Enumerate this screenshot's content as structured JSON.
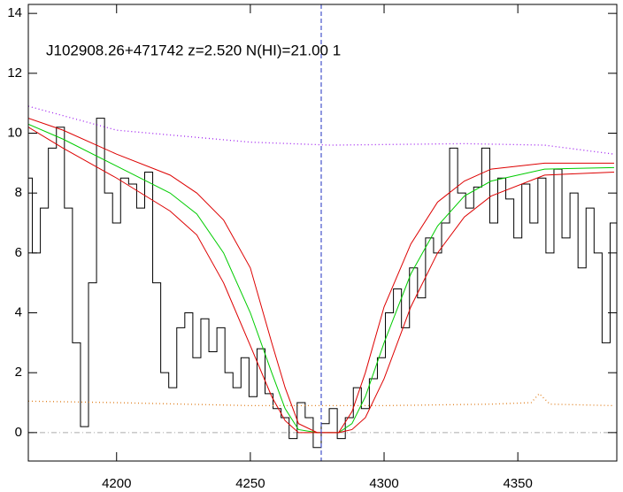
{
  "chart_data": {
    "type": "line",
    "title": "J102908.26+471742 z=2.520 N(HI)=21.00 1",
    "xlim": [
      4167,
      4387
    ],
    "ylim": [
      -0.95,
      14.3
    ],
    "xticks": [
      4200,
      4250,
      4300,
      4350
    ],
    "yticks": [
      0,
      2,
      4,
      6,
      8,
      10,
      12,
      14
    ],
    "grid": false,
    "vline": 4276.5,
    "hline": 0,
    "series": [
      {
        "color": "#000000",
        "style": "step",
        "x": [
          4167,
          4170,
          4173,
          4176,
          4179,
          4182,
          4185,
          4188,
          4191,
          4194,
          4197,
          4200,
          4203,
          4206,
          4209,
          4212,
          4215,
          4218,
          4221,
          4224,
          4227,
          4230,
          4233,
          4236,
          4239,
          4242,
          4245,
          4248,
          4251,
          4254,
          4257,
          4260,
          4263,
          4266,
          4269,
          4272,
          4275,
          4278,
          4281,
          4284,
          4287,
          4290,
          4293,
          4296,
          4299,
          4302,
          4305,
          4308,
          4311,
          4314,
          4317,
          4320,
          4323,
          4326,
          4329,
          4332,
          4335,
          4338,
          4341,
          4344,
          4347,
          4350,
          4353,
          4356,
          4359,
          4362,
          4365,
          4368,
          4371,
          4374,
          4377,
          4380,
          4383,
          4386
        ],
        "values": [
          8.5,
          6,
          7.5,
          9.5,
          10.2,
          7.5,
          3,
          0.2,
          5,
          10.5,
          8,
          7,
          8.5,
          8.3,
          7.5,
          8.7,
          5,
          2,
          1.5,
          3.5,
          4,
          2.5,
          3.8,
          2.7,
          3.5,
          2,
          1.5,
          2.5,
          1.2,
          2.8,
          1.3,
          0.8,
          0.5,
          -0.2,
          1,
          0.5,
          -0.5,
          0.3,
          0.8,
          -0.2,
          0.5,
          1.5,
          0.8,
          1.8,
          2.5,
          4,
          4.8,
          3.5,
          5.5,
          4.5,
          6.5,
          6,
          7,
          9.5,
          8,
          7.5,
          8.2,
          9.5,
          7,
          8.5,
          7.8,
          6.5,
          8.3,
          7,
          8.5,
          6,
          8.8,
          6.5,
          8,
          5.5,
          7.5,
          6,
          3,
          7
        ]
      },
      {
        "color": "#a020f0",
        "style": "dotted",
        "x": [
          4167,
          4200,
          4250,
          4280,
          4330,
          4360,
          4386
        ],
        "values": [
          10.9,
          10.1,
          9.7,
          9.6,
          9.65,
          9.6,
          9.3
        ]
      },
      {
        "color": "#e08020",
        "style": "dotted",
        "x": [
          4167,
          4200,
          4250,
          4300,
          4340,
          4355,
          4358,
          4362,
          4386
        ],
        "values": [
          1.05,
          1.0,
          0.9,
          0.9,
          0.95,
          1.0,
          1.3,
          0.95,
          0.9
        ]
      },
      {
        "color": "#00cc00",
        "style": "solid",
        "x": [
          4167,
          4180,
          4200,
          4220,
          4230,
          4240,
          4250,
          4258,
          4263,
          4268,
          4275,
          4283,
          4288,
          4293,
          4300,
          4310,
          4320,
          4330,
          4340,
          4360,
          4386
        ],
        "values": [
          10.3,
          9.8,
          8.9,
          8.0,
          7.3,
          6.0,
          4.0,
          2.0,
          0.8,
          0.1,
          0,
          0,
          0.3,
          1.2,
          3.0,
          5.3,
          6.9,
          7.9,
          8.4,
          8.8,
          8.85
        ]
      },
      {
        "color": "#dd0000",
        "style": "solid",
        "x": [
          4167,
          4180,
          4200,
          4220,
          4230,
          4240,
          4250,
          4258,
          4263,
          4268,
          4275,
          4283,
          4288,
          4293,
          4300,
          4310,
          4320,
          4330,
          4340,
          4360,
          4386
        ],
        "values": [
          10.5,
          10.1,
          9.3,
          8.6,
          8.0,
          7.1,
          5.5,
          3.0,
          1.5,
          0.3,
          0,
          0,
          0.7,
          2.0,
          4.2,
          6.3,
          7.7,
          8.4,
          8.8,
          9.0,
          9.0
        ]
      },
      {
        "color": "#dd0000",
        "style": "solid",
        "x": [
          4167,
          4180,
          4200,
          4220,
          4230,
          4240,
          4250,
          4258,
          4263,
          4268,
          4275,
          4283,
          4288,
          4293,
          4300,
          4310,
          4320,
          4330,
          4340,
          4360,
          4386
        ],
        "values": [
          10.2,
          9.5,
          8.5,
          7.4,
          6.6,
          5.0,
          2.9,
          1.2,
          0.4,
          0,
          0,
          0,
          0.1,
          0.5,
          1.8,
          4.2,
          6.0,
          7.2,
          7.9,
          8.6,
          8.7
        ]
      }
    ]
  }
}
